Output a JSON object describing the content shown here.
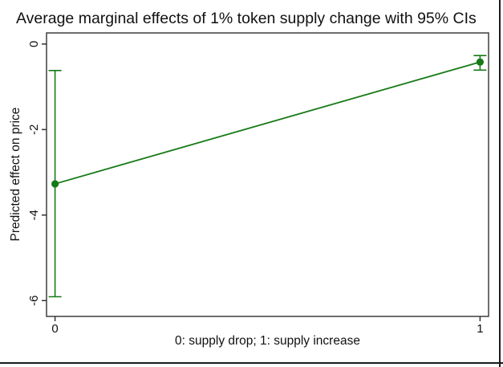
{
  "window": {
    "background": "#ffffff",
    "frame_color": "#1a1a1a"
  },
  "chart_data": {
    "type": "line",
    "title": "Average marginal effects of 1% token supply change with 95% CIs",
    "xlabel": "0: supply drop; 1: supply increase",
    "ylabel": "Predicted effect on price",
    "x": [
      0,
      1
    ],
    "y": [
      -3.27,
      -0.42
    ],
    "ci_low": [
      -5.91,
      -0.61
    ],
    "ci_high": [
      -0.62,
      -0.27
    ],
    "xticks": [
      0,
      1
    ],
    "xtick_labels": [
      "0",
      "1"
    ],
    "yticks": [
      0,
      -2,
      -4,
      -6
    ],
    "ytick_labels": [
      "0",
      "-2",
      "-4",
      "-6"
    ],
    "xlim": [
      -0.02,
      1.02
    ],
    "ylim": [
      -6.37,
      0.26
    ],
    "grid": false,
    "legend": "none",
    "series_color": "#177a17",
    "axis_color": "#4a4a4a",
    "tick_color": "#333333"
  }
}
